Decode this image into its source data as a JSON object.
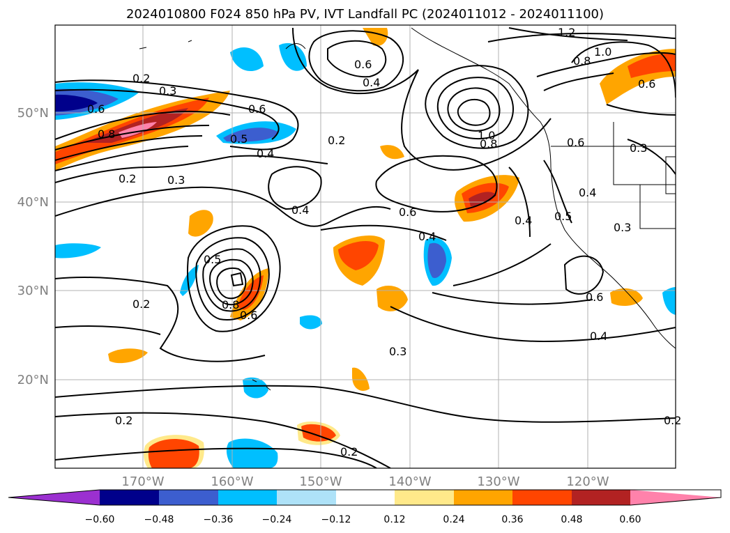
{
  "title": "2024010800 F024 850 hPa PV, IVT Landfall PC (2024011012 - 2024011100)",
  "map": {
    "lat_labels": [
      "50°N",
      "40°N",
      "30°N",
      "20°N"
    ],
    "lon_labels": [
      "170°W",
      "160°W",
      "150°W",
      "140°W",
      "130°W",
      "120°W"
    ],
    "contour_labels": [
      "1.2",
      "1.0",
      "0.8",
      "0.6",
      "0.2",
      "0.3",
      "0.6",
      "0.8",
      "0.6",
      "0.5",
      "0.4",
      "0.4",
      "0.2",
      "0.6",
      "1.0",
      "0.8",
      "0.6",
      "0.4",
      "0.3",
      "0.2",
      "0.3",
      "0.4",
      "0.6",
      "0.4",
      "0.5",
      "0.3",
      "0.5",
      "0.8",
      "0.6",
      "0.2",
      "0.6",
      "0.4",
      "0.3",
      "0.2",
      "0.2",
      "0.2",
      "0.4"
    ]
  },
  "colorbar": {
    "ticks": [
      "−0.60",
      "−0.48",
      "−0.36",
      "−0.24",
      "−0.12",
      "0.12",
      "0.24",
      "0.36",
      "0.48",
      "0.60"
    ],
    "colors": [
      "#9b30d0",
      "#00008b",
      "#3c5ecf",
      "#00bfff",
      "#aee2f8",
      "#ffffff",
      "#ffe98a",
      "#ffa500",
      "#ff4500",
      "#b22222",
      "#ff82ab"
    ]
  }
}
